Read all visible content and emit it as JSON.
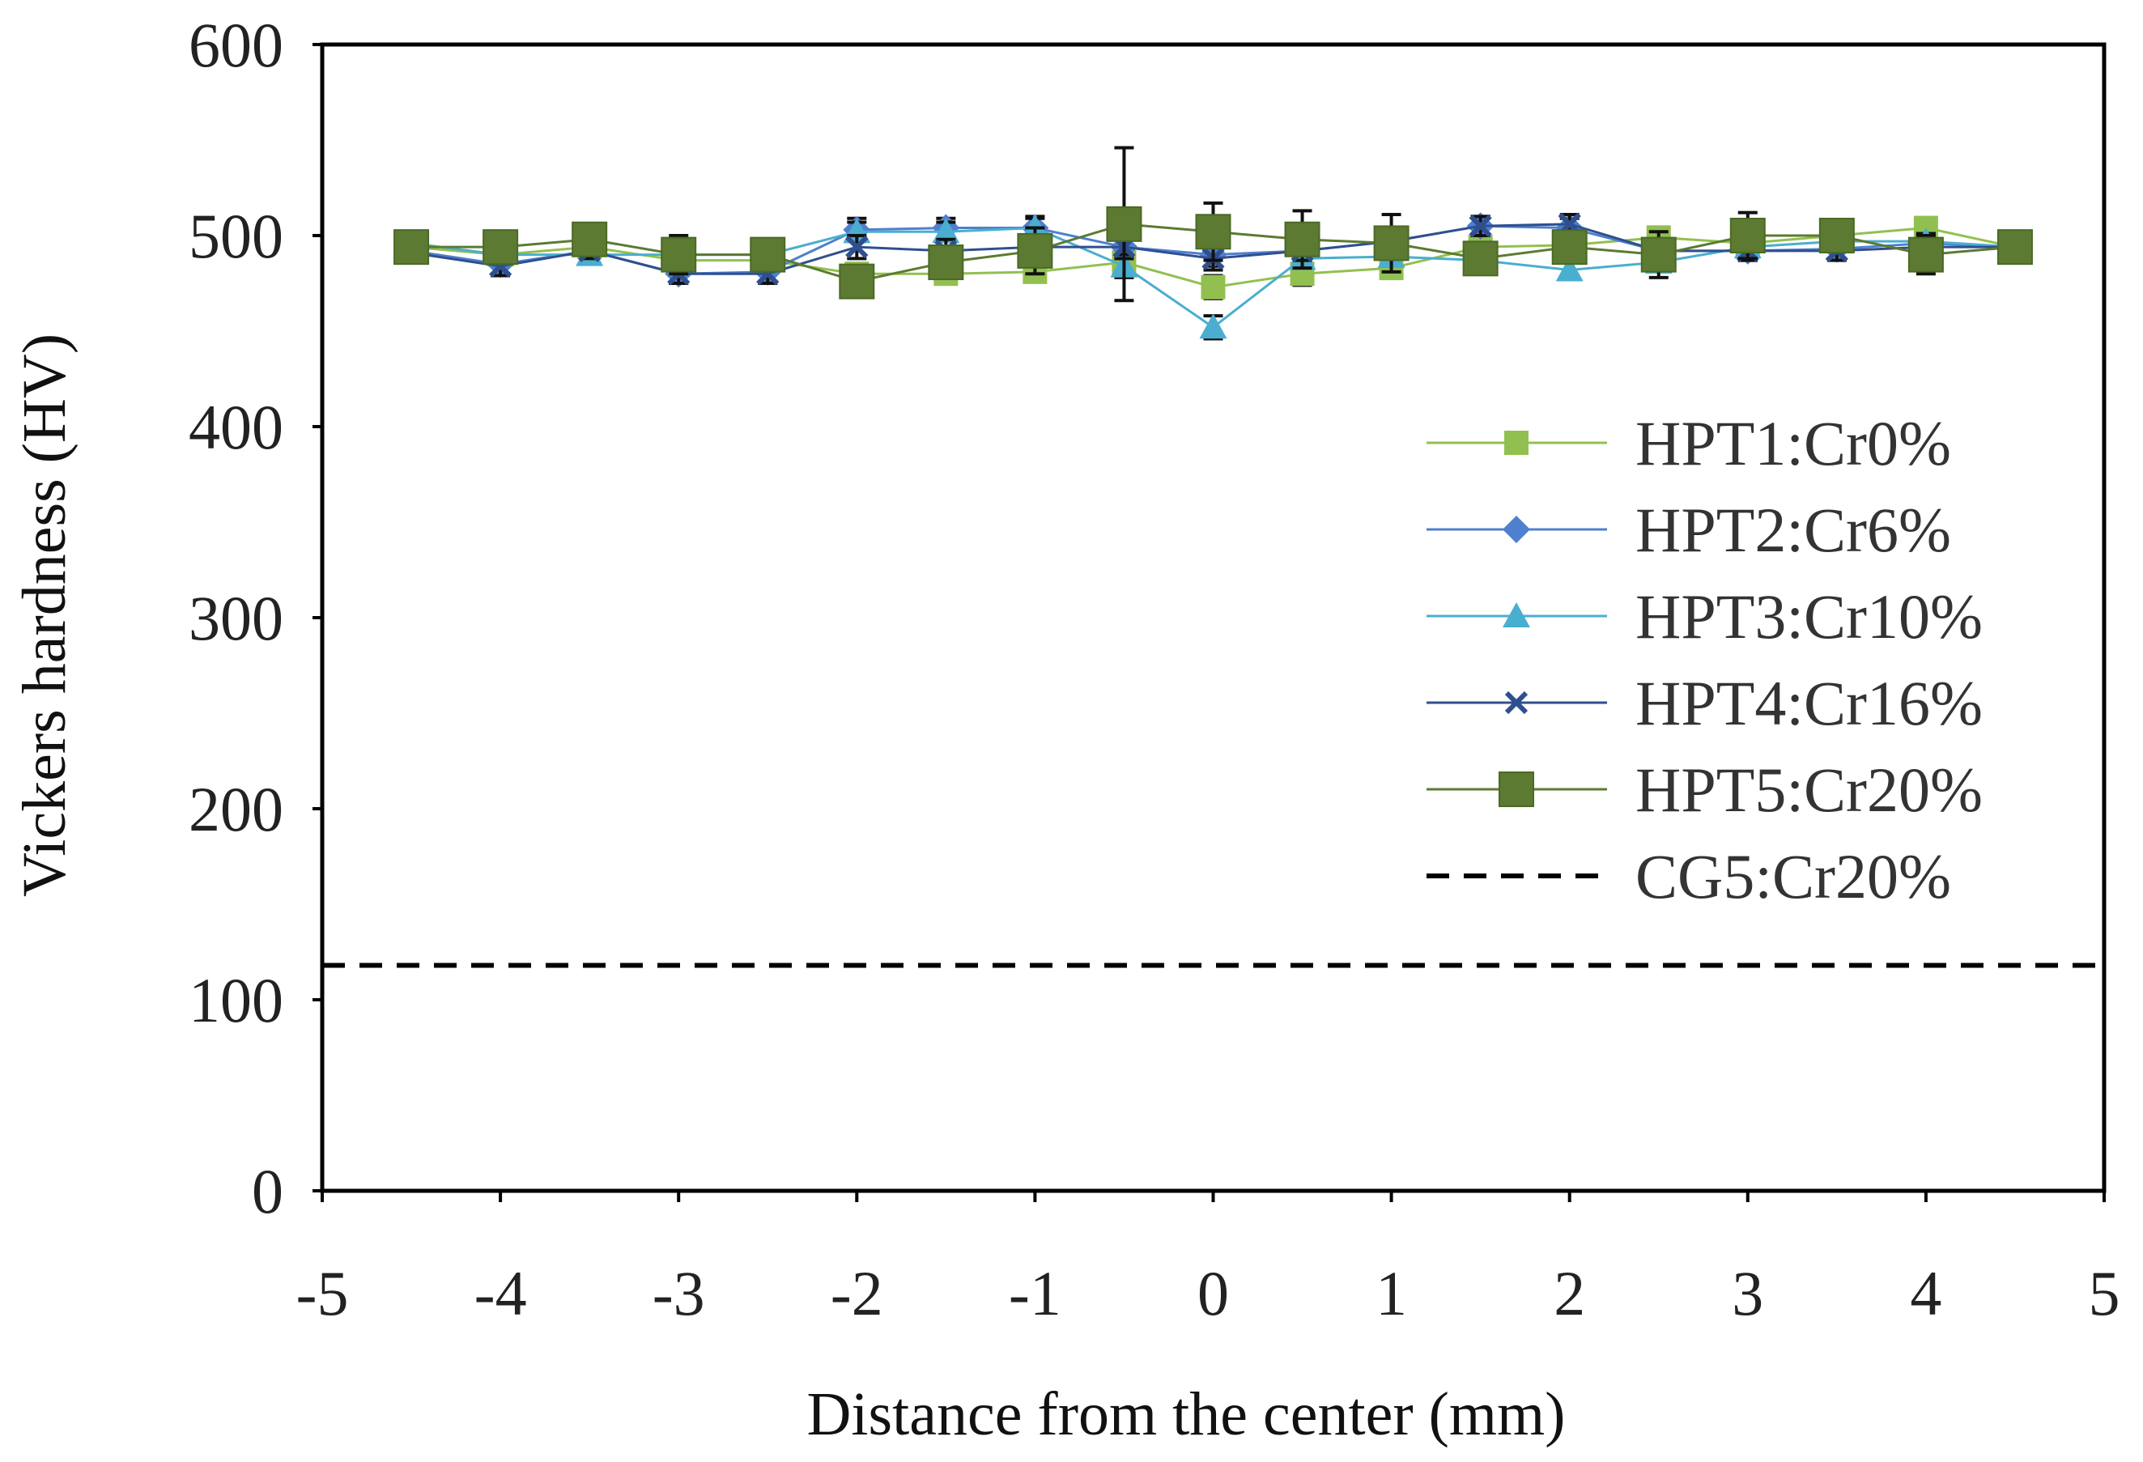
{
  "chart_data": {
    "type": "line",
    "title": "",
    "xlabel": "Distance from the center (mm)",
    "ylabel": "Vickers hardness (HV)",
    "xlim": [
      -5,
      5
    ],
    "ylim": [
      0,
      600
    ],
    "xticks": [
      -5,
      -4,
      -3,
      -2,
      -1,
      0,
      1,
      2,
      3,
      4,
      5
    ],
    "yticks": [
      0,
      100,
      200,
      300,
      400,
      500,
      600
    ],
    "grid": false,
    "legend_position": "right",
    "x": [
      -4.5,
      -4,
      -3.5,
      -3,
      -2.5,
      -2,
      -1.5,
      -1,
      -0.5,
      0,
      0.5,
      1,
      1.5,
      2,
      2.5,
      3,
      3.5,
      4,
      4.5
    ],
    "series": [
      {
        "name": "HPT1:Cr0%",
        "color": "#92c050",
        "marker": "square-small",
        "values": [
          494,
          490,
          494,
          487,
          487,
          480,
          480,
          481,
          486,
          473,
          480,
          483,
          494,
          495,
          499,
          496,
          500,
          504,
          494
        ],
        "errors": [
          4,
          4,
          3,
          5,
          5,
          5,
          5,
          5,
          6,
          6,
          6,
          5,
          4,
          4,
          4,
          4,
          4,
          4,
          3
        ]
      },
      {
        "name": "HPT2:Cr6%",
        "color": "#4f7fcf",
        "marker": "diamond",
        "values": [
          492,
          485,
          492,
          480,
          481,
          503,
          504,
          504,
          494,
          490,
          492,
          497,
          505,
          504,
          492,
          492,
          493,
          496,
          494
        ],
        "errors": [
          5,
          5,
          4,
          5,
          5,
          6,
          5,
          6,
          6,
          6,
          5,
          5,
          5,
          5,
          5,
          5,
          5,
          5,
          4
        ]
      },
      {
        "name": "HPT3:Cr10%",
        "color": "#4aaed0",
        "marker": "triangle",
        "values": [
          496,
          490,
          490,
          490,
          490,
          502,
          502,
          504,
          484,
          452,
          488,
          489,
          487,
          482,
          486,
          494,
          497,
          497,
          494
        ],
        "errors": [
          4,
          4,
          4,
          4,
          4,
          5,
          5,
          5,
          6,
          6,
          5,
          5,
          5,
          5,
          5,
          4,
          4,
          4,
          3
        ]
      },
      {
        "name": "HPT4:Cr16%",
        "color": "#2f4f8f",
        "marker": "x",
        "values": [
          491,
          484,
          492,
          480,
          480,
          494,
          492,
          494,
          494,
          488,
          492,
          497,
          505,
          506,
          492,
          492,
          492,
          494,
          494
        ],
        "errors": [
          5,
          5,
          4,
          5,
          5,
          6,
          6,
          6,
          6,
          6,
          5,
          5,
          5,
          5,
          5,
          5,
          5,
          5,
          4
        ]
      },
      {
        "name": "HPT5:Cr20%",
        "color": "#5c7a32",
        "marker": "square",
        "values": [
          494,
          494,
          498,
          490,
          490,
          476,
          486,
          492,
          506,
          502,
          498,
          496,
          488,
          494,
          490,
          500,
          500,
          490,
          494
        ],
        "errors": [
          6,
          8,
          6,
          10,
          8,
          8,
          8,
          12,
          40,
          15,
          15,
          15,
          8,
          8,
          12,
          12,
          8,
          10,
          5
        ]
      }
    ],
    "reference_lines": [
      {
        "name": "CG5:Cr20%",
        "color": "#000000",
        "style": "dashed",
        "value": 118
      }
    ]
  }
}
